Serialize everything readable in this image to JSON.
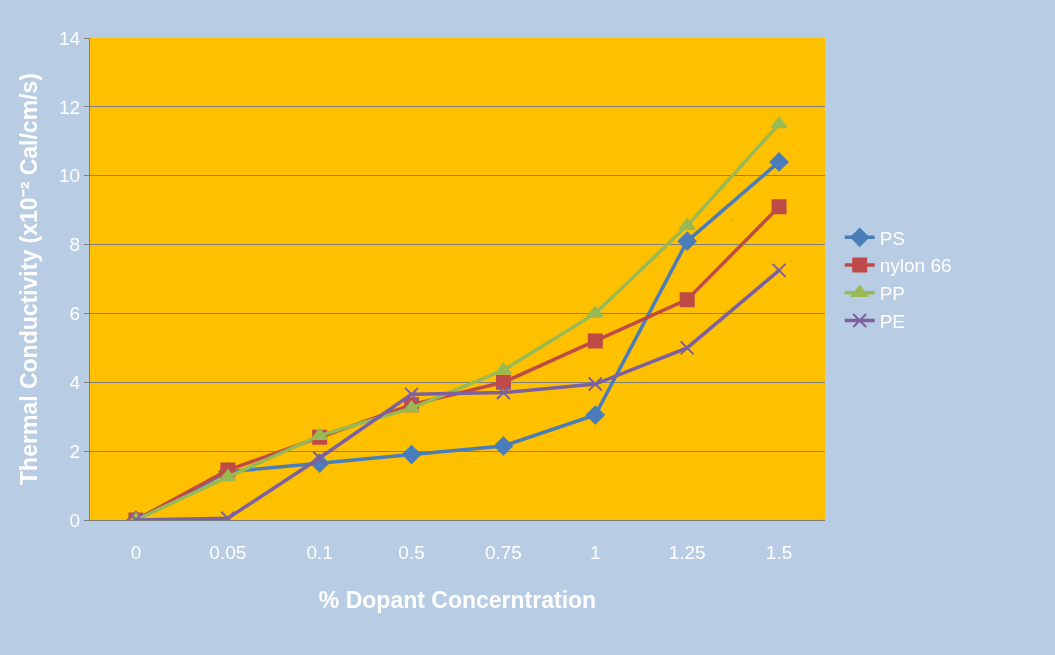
{
  "chart_data": {
    "type": "line",
    "xlabel": "% Dopant Concerntration",
    "ylabel": "Thermal Conductivity (x10⁻² Cal/cm/s)",
    "categories": [
      "0",
      "0.05",
      "0.1",
      "0.5",
      "0.75",
      "1",
      "1.25",
      "1.5"
    ],
    "series": [
      {
        "name": "PS",
        "color": "#4a7ebb",
        "marker": "diamond",
        "values": [
          0,
          1.4,
          1.65,
          1.9,
          2.15,
          3.05,
          8.1,
          10.4
        ]
      },
      {
        "name": "nylon 66",
        "color": "#be4b48",
        "marker": "square",
        "values": [
          0,
          1.45,
          2.4,
          3.35,
          4.0,
          5.2,
          6.4,
          9.1
        ]
      },
      {
        "name": "PP",
        "color": "#98b954",
        "marker": "triangle",
        "values": [
          0,
          1.25,
          2.45,
          3.25,
          4.35,
          6.0,
          8.55,
          11.5
        ]
      },
      {
        "name": "PE",
        "color": "#7d60a0",
        "marker": "cross",
        "values": [
          0,
          0.05,
          1.8,
          3.65,
          3.7,
          3.95,
          5.0,
          7.25
        ]
      }
    ],
    "ylim": [
      0,
      14
    ],
    "yticks": [
      0,
      2,
      4,
      6,
      8,
      10,
      12,
      14
    ],
    "grid": "y",
    "legend": "right"
  }
}
